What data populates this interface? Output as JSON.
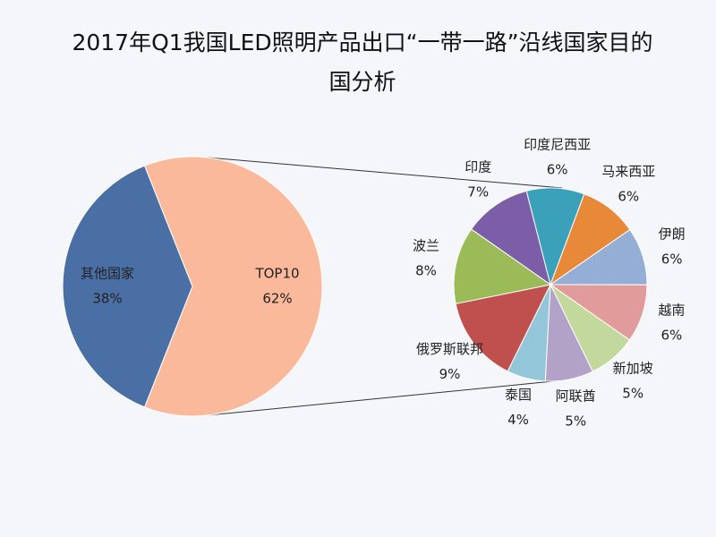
{
  "chart_data": [
    {
      "type": "pie",
      "title": "2017年Q1我国LED照明产品出口“一带一路”沿线国家目的国分析",
      "categories": [
        "其他国家",
        "TOP10"
      ],
      "values": [
        38,
        62
      ],
      "value_labels": [
        "38%",
        "62%"
      ],
      "colors": [
        "#4a6fa5",
        "#f9b99a"
      ]
    },
    {
      "type": "pie",
      "categories": [
        "印度",
        "印度尼西亚",
        "马来西亚",
        "伊朗",
        "越南",
        "新加坡",
        "阿联酋",
        "泰国",
        "俄罗斯联邦",
        "波兰"
      ],
      "values": [
        7,
        6,
        6,
        6,
        6,
        5,
        5,
        4,
        9,
        8
      ],
      "value_labels": [
        "7%",
        "6%",
        "6%",
        "6%",
        "6%",
        "5%",
        "5%",
        "4%",
        "9%",
        "8%"
      ],
      "colors": [
        "#7b5ea7",
        "#3ba0b9",
        "#e8893a",
        "#95aed6",
        "#e29b9b",
        "#c3d89c",
        "#b3a2c7",
        "#93c6d9",
        "#c0504d",
        "#9bbb59"
      ]
    }
  ]
}
